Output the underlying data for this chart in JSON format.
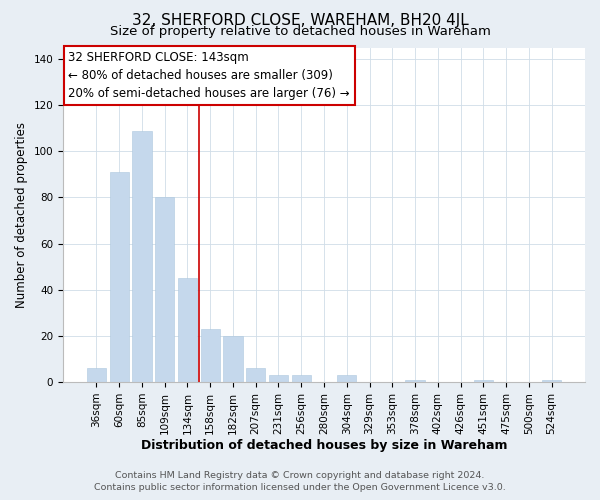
{
  "title": "32, SHERFORD CLOSE, WAREHAM, BH20 4JL",
  "subtitle": "Size of property relative to detached houses in Wareham",
  "xlabel": "Distribution of detached houses by size in Wareham",
  "ylabel": "Number of detached properties",
  "bar_labels": [
    "36sqm",
    "60sqm",
    "85sqm",
    "109sqm",
    "134sqm",
    "158sqm",
    "182sqm",
    "207sqm",
    "231sqm",
    "256sqm",
    "280sqm",
    "304sqm",
    "329sqm",
    "353sqm",
    "378sqm",
    "402sqm",
    "426sqm",
    "451sqm",
    "475sqm",
    "500sqm",
    "524sqm"
  ],
  "bar_values": [
    6,
    91,
    109,
    80,
    45,
    23,
    20,
    6,
    3,
    3,
    0,
    3,
    0,
    0,
    1,
    0,
    0,
    1,
    0,
    0,
    1
  ],
  "bar_color": "#c5d8ec",
  "vline_x_index": 4,
  "vline_color": "#cc0000",
  "annotation_title": "32 SHERFORD CLOSE: 143sqm",
  "annotation_line1": "← 80% of detached houses are smaller (309)",
  "annotation_line2": "20% of semi-detached houses are larger (76) →",
  "ylim": [
    0,
    145
  ],
  "yticks": [
    0,
    20,
    40,
    60,
    80,
    100,
    120,
    140
  ],
  "footer_line1": "Contains HM Land Registry data © Crown copyright and database right 2024.",
  "footer_line2": "Contains public sector information licensed under the Open Government Licence v3.0.",
  "bg_color": "#e8eef4",
  "plot_bg_color": "#ffffff",
  "title_fontsize": 11,
  "subtitle_fontsize": 9.5,
  "xlabel_fontsize": 9,
  "ylabel_fontsize": 8.5,
  "tick_fontsize": 7.5,
  "footer_fontsize": 6.8,
  "annotation_fontsize": 8.5,
  "grid_color": "#d0dde8"
}
